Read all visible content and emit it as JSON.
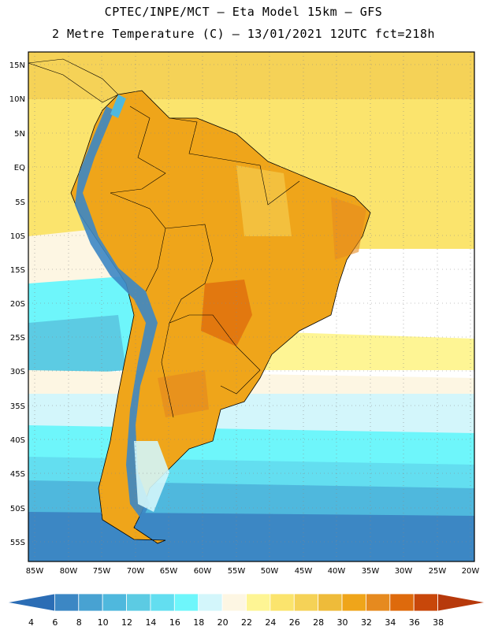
{
  "header": {
    "line1": "CPTEC/INPE/MCT –  Eta Model 15km – GFS",
    "line2": "2 Metre Temperature (C) – 13/01/2021 12UTC fct=218h"
  },
  "axes": {
    "lat_labels": [
      "15N",
      "10N",
      "5N",
      "EQ",
      "5S",
      "10S",
      "15S",
      "20S",
      "25S",
      "30S",
      "35S",
      "40S",
      "45S",
      "50S",
      "55S"
    ],
    "lon_labels": [
      "85W",
      "80W",
      "75W",
      "70W",
      "65W",
      "60W",
      "55W",
      "50W",
      "45W",
      "40W",
      "35W",
      "30W",
      "25W",
      "20W"
    ]
  },
  "colorbar": {
    "ticks": [
      "4",
      "6",
      "8",
      "10",
      "12",
      "14",
      "16",
      "18",
      "20",
      "22",
      "24",
      "26",
      "28",
      "30",
      "32",
      "34",
      "36",
      "38"
    ],
    "colors": [
      "#2b6db5",
      "#3c87c4",
      "#48a2d2",
      "#4fb8dd",
      "#5ccbe3",
      "#63def0",
      "#6ef6fb",
      "#d3f6fb",
      "#fdf6e3",
      "#fef594",
      "#fbe46d",
      "#f5d257",
      "#eebb3a",
      "#efa51a",
      "#e68a1f",
      "#de6a0c",
      "#c8470a",
      "#b7390b"
    ]
  }
}
